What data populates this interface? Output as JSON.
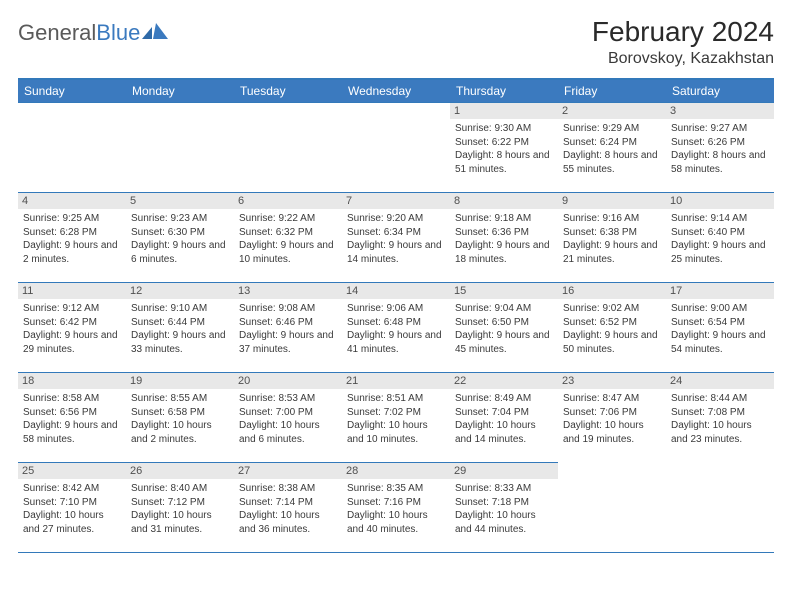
{
  "brand": {
    "left": "General",
    "right": "Blue"
  },
  "title": "February 2024",
  "location": "Borovskoy, Kazakhstan",
  "colors": {
    "header_bg": "#3b7abf",
    "header_text": "#ffffff",
    "date_bg": "#e8e8e8",
    "border": "#3379ba",
    "text": "#323232"
  },
  "day_headers": [
    "Sunday",
    "Monday",
    "Tuesday",
    "Wednesday",
    "Thursday",
    "Friday",
    "Saturday"
  ],
  "leading_blanks": 4,
  "days": [
    {
      "n": 1,
      "sr": "9:30 AM",
      "ss": "6:22 PM",
      "dl": "8 hours and 51 minutes."
    },
    {
      "n": 2,
      "sr": "9:29 AM",
      "ss": "6:24 PM",
      "dl": "8 hours and 55 minutes."
    },
    {
      "n": 3,
      "sr": "9:27 AM",
      "ss": "6:26 PM",
      "dl": "8 hours and 58 minutes."
    },
    {
      "n": 4,
      "sr": "9:25 AM",
      "ss": "6:28 PM",
      "dl": "9 hours and 2 minutes."
    },
    {
      "n": 5,
      "sr": "9:23 AM",
      "ss": "6:30 PM",
      "dl": "9 hours and 6 minutes."
    },
    {
      "n": 6,
      "sr": "9:22 AM",
      "ss": "6:32 PM",
      "dl": "9 hours and 10 minutes."
    },
    {
      "n": 7,
      "sr": "9:20 AM",
      "ss": "6:34 PM",
      "dl": "9 hours and 14 minutes."
    },
    {
      "n": 8,
      "sr": "9:18 AM",
      "ss": "6:36 PM",
      "dl": "9 hours and 18 minutes."
    },
    {
      "n": 9,
      "sr": "9:16 AM",
      "ss": "6:38 PM",
      "dl": "9 hours and 21 minutes."
    },
    {
      "n": 10,
      "sr": "9:14 AM",
      "ss": "6:40 PM",
      "dl": "9 hours and 25 minutes."
    },
    {
      "n": 11,
      "sr": "9:12 AM",
      "ss": "6:42 PM",
      "dl": "9 hours and 29 minutes."
    },
    {
      "n": 12,
      "sr": "9:10 AM",
      "ss": "6:44 PM",
      "dl": "9 hours and 33 minutes."
    },
    {
      "n": 13,
      "sr": "9:08 AM",
      "ss": "6:46 PM",
      "dl": "9 hours and 37 minutes."
    },
    {
      "n": 14,
      "sr": "9:06 AM",
      "ss": "6:48 PM",
      "dl": "9 hours and 41 minutes."
    },
    {
      "n": 15,
      "sr": "9:04 AM",
      "ss": "6:50 PM",
      "dl": "9 hours and 45 minutes."
    },
    {
      "n": 16,
      "sr": "9:02 AM",
      "ss": "6:52 PM",
      "dl": "9 hours and 50 minutes."
    },
    {
      "n": 17,
      "sr": "9:00 AM",
      "ss": "6:54 PM",
      "dl": "9 hours and 54 minutes."
    },
    {
      "n": 18,
      "sr": "8:58 AM",
      "ss": "6:56 PM",
      "dl": "9 hours and 58 minutes."
    },
    {
      "n": 19,
      "sr": "8:55 AM",
      "ss": "6:58 PM",
      "dl": "10 hours and 2 minutes."
    },
    {
      "n": 20,
      "sr": "8:53 AM",
      "ss": "7:00 PM",
      "dl": "10 hours and 6 minutes."
    },
    {
      "n": 21,
      "sr": "8:51 AM",
      "ss": "7:02 PM",
      "dl": "10 hours and 10 minutes."
    },
    {
      "n": 22,
      "sr": "8:49 AM",
      "ss": "7:04 PM",
      "dl": "10 hours and 14 minutes."
    },
    {
      "n": 23,
      "sr": "8:47 AM",
      "ss": "7:06 PM",
      "dl": "10 hours and 19 minutes."
    },
    {
      "n": 24,
      "sr": "8:44 AM",
      "ss": "7:08 PM",
      "dl": "10 hours and 23 minutes."
    },
    {
      "n": 25,
      "sr": "8:42 AM",
      "ss": "7:10 PM",
      "dl": "10 hours and 27 minutes."
    },
    {
      "n": 26,
      "sr": "8:40 AM",
      "ss": "7:12 PM",
      "dl": "10 hours and 31 minutes."
    },
    {
      "n": 27,
      "sr": "8:38 AM",
      "ss": "7:14 PM",
      "dl": "10 hours and 36 minutes."
    },
    {
      "n": 28,
      "sr": "8:35 AM",
      "ss": "7:16 PM",
      "dl": "10 hours and 40 minutes."
    },
    {
      "n": 29,
      "sr": "8:33 AM",
      "ss": "7:18 PM",
      "dl": "10 hours and 44 minutes."
    }
  ],
  "labels": {
    "sunrise": "Sunrise:",
    "sunset": "Sunset:",
    "daylight": "Daylight:"
  }
}
